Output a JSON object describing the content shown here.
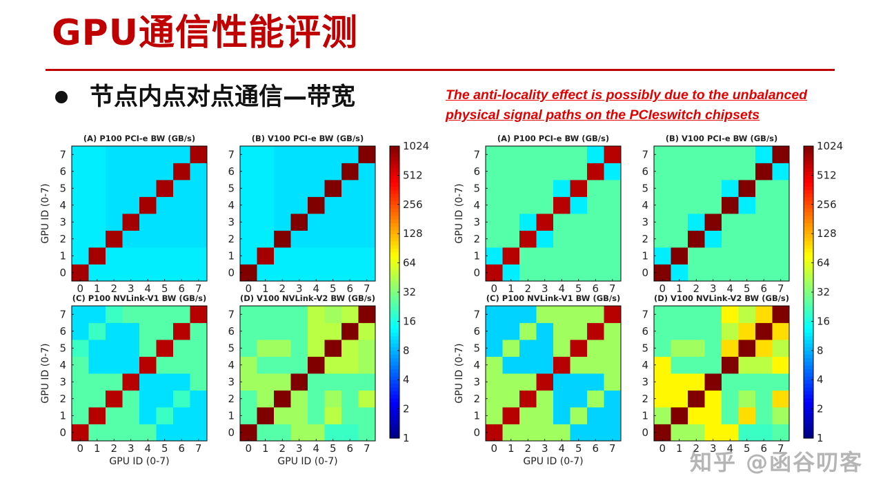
{
  "page": {
    "title": "GPU通信性能评测",
    "bullet": "节点内点对点通信—带宽",
    "note": "The anti-locality effect is possibly due to the unbalanced physical signal paths on the PCIeswitch chipsets",
    "watermark": "知乎 @函谷叨客"
  },
  "colors": {
    "title": "#c00000",
    "note": "#e00000"
  },
  "chart_data": [
    {
      "type": "heatmap",
      "figure": "left",
      "panels": [
        {
          "title": "(A) P100 PCI-e BW (GB/s)",
          "xlabel": "",
          "ylabel": "GPU ID (0-7)",
          "categories": [
            "0",
            "1",
            "2",
            "3",
            "4",
            "5",
            "6",
            "7"
          ],
          "values": [
            [
              800,
              12,
              12,
              12,
              12,
              12,
              12,
              12
            ],
            [
              12,
              800,
              12,
              12,
              12,
              12,
              12,
              12
            ],
            [
              12,
              12,
              800,
              11,
              11,
              11,
              11,
              11
            ],
            [
              12,
              12,
              11,
              800,
              11,
              11,
              11,
              11
            ],
            [
              12,
              12,
              11,
              11,
              800,
              11,
              11,
              11
            ],
            [
              12,
              12,
              11,
              11,
              11,
              800,
              11,
              11
            ],
            [
              12,
              12,
              11,
              11,
              11,
              11,
              800,
              11
            ],
            [
              12,
              12,
              11,
              11,
              11,
              11,
              11,
              800
            ]
          ]
        },
        {
          "title": "(B) V100 PCI-e BW (GB/s)",
          "xlabel": "",
          "ylabel": "",
          "categories": [
            "0",
            "1",
            "2",
            "3",
            "4",
            "5",
            "6",
            "7"
          ],
          "values": [
            [
              1024,
              12,
              12,
              12,
              12,
              12,
              12,
              12
            ],
            [
              12,
              800,
              12,
              12,
              12,
              12,
              12,
              12
            ],
            [
              12,
              12,
              1024,
              11,
              11,
              11,
              11,
              11
            ],
            [
              12,
              12,
              11,
              1024,
              11,
              11,
              11,
              11
            ],
            [
              12,
              12,
              11,
              11,
              1024,
              11,
              11,
              11
            ],
            [
              12,
              12,
              11,
              11,
              11,
              1024,
              11,
              11
            ],
            [
              12,
              12,
              11,
              11,
              11,
              11,
              1024,
              11
            ],
            [
              12,
              12,
              11,
              11,
              11,
              11,
              11,
              1024
            ]
          ]
        },
        {
          "title": "(C) P100 NVLink-V1 BW (GB/s)",
          "xlabel": "GPU ID (0-7)",
          "ylabel": "GPU ID (0-7)",
          "categories": [
            "0",
            "1",
            "2",
            "3",
            "4",
            "5",
            "6",
            "7"
          ],
          "values": [
            [
              700,
              24,
              24,
              24,
              24,
              11,
              11,
              11
            ],
            [
              24,
              700,
              24,
              24,
              11,
              20,
              11,
              11
            ],
            [
              24,
              24,
              700,
              24,
              11,
              11,
              20,
              11
            ],
            [
              24,
              24,
              24,
              700,
              11,
              11,
              11,
              24
            ],
            [
              24,
              11,
              11,
              11,
              700,
              24,
              24,
              24
            ],
            [
              20,
              11,
              11,
              11,
              24,
              700,
              24,
              24
            ],
            [
              11,
              20,
              11,
              11,
              24,
              24,
              700,
              24
            ],
            [
              11,
              11,
              20,
              24,
              24,
              24,
              24,
              700
            ]
          ]
        },
        {
          "title": "(D) V100 NVLink-V2 BW (GB/s)",
          "xlabel": "GPU ID (0-7)",
          "ylabel": "",
          "categories": [
            "0",
            "1",
            "2",
            "3",
            "4",
            "5",
            "6",
            "7"
          ],
          "values": [
            [
              1024,
              24,
              24,
              40,
              40,
              20,
              20,
              24
            ],
            [
              24,
              1024,
              40,
              40,
              24,
              48,
              24,
              24
            ],
            [
              24,
              40,
              1024,
              40,
              24,
              40,
              24,
              48
            ],
            [
              40,
              40,
              40,
              1024,
              24,
              24,
              24,
              24
            ],
            [
              40,
              24,
              24,
              24,
              1024,
              48,
              48,
              40
            ],
            [
              24,
              40,
              40,
              24,
              48,
              1024,
              48,
              40
            ],
            [
              24,
              24,
              24,
              24,
              48,
              48,
              1024,
              48
            ],
            [
              24,
              24,
              24,
              24,
              48,
              40,
              48,
              1024
            ]
          ]
        }
      ],
      "colorbar": {
        "label_ticks": [
          "1",
          "2",
          "4",
          "8",
          "16",
          "32",
          "64",
          "128",
          "256",
          "512",
          "1024"
        ],
        "scale": "log2",
        "range": [
          1,
          1024
        ]
      }
    },
    {
      "type": "heatmap",
      "figure": "right",
      "panels": [
        {
          "title": "(A) P100 PCI-e BW (GB/s)",
          "xlabel": "",
          "ylabel": "GPU ID (0-7)",
          "categories": [
            "0",
            "1",
            "2",
            "3",
            "4",
            "5",
            "6",
            "7"
          ],
          "values": [
            [
              700,
              12,
              24,
              24,
              24,
              24,
              24,
              24
            ],
            [
              12,
              700,
              24,
              24,
              24,
              24,
              24,
              24
            ],
            [
              24,
              24,
              700,
              12,
              24,
              24,
              24,
              24
            ],
            [
              24,
              24,
              12,
              700,
              24,
              24,
              24,
              24
            ],
            [
              24,
              24,
              24,
              24,
              700,
              12,
              24,
              24
            ],
            [
              24,
              24,
              24,
              24,
              12,
              700,
              24,
              24
            ],
            [
              24,
              24,
              24,
              24,
              24,
              24,
              700,
              12
            ],
            [
              24,
              24,
              24,
              24,
              24,
              24,
              12,
              700
            ]
          ]
        },
        {
          "title": "(B) V100 PCI-e BW (GB/s)",
          "xlabel": "",
          "ylabel": "",
          "categories": [
            "0",
            "1",
            "2",
            "3",
            "4",
            "5",
            "6",
            "7"
          ],
          "values": [
            [
              1024,
              12,
              24,
              24,
              24,
              24,
              24,
              24
            ],
            [
              12,
              1024,
              24,
              24,
              24,
              24,
              24,
              24
            ],
            [
              24,
              24,
              1024,
              12,
              24,
              24,
              24,
              24
            ],
            [
              24,
              24,
              12,
              1024,
              24,
              24,
              24,
              24
            ],
            [
              24,
              24,
              24,
              24,
              1024,
              12,
              24,
              24
            ],
            [
              24,
              24,
              24,
              24,
              12,
              1024,
              24,
              24
            ],
            [
              24,
              24,
              24,
              24,
              24,
              24,
              1024,
              12
            ],
            [
              24,
              24,
              24,
              24,
              24,
              24,
              12,
              1024
            ]
          ]
        },
        {
          "title": "(C) P100 NVLink-V1 BW (GB/s)",
          "xlabel": "GPU ID (0-7)",
          "ylabel": "GPU ID (0-7)",
          "categories": [
            "0",
            "1",
            "2",
            "3",
            "4",
            "5",
            "6",
            "7"
          ],
          "values": [
            [
              700,
              40,
              40,
              40,
              40,
              10,
              10,
              10
            ],
            [
              40,
              700,
              40,
              40,
              10,
              40,
              10,
              10
            ],
            [
              40,
              40,
              700,
              40,
              10,
              10,
              40,
              10
            ],
            [
              40,
              40,
              40,
              700,
              10,
              10,
              10,
              40
            ],
            [
              40,
              10,
              10,
              10,
              700,
              40,
              40,
              40
            ],
            [
              10,
              40,
              10,
              10,
              40,
              700,
              40,
              40
            ],
            [
              10,
              10,
              40,
              10,
              40,
              40,
              700,
              40
            ],
            [
              10,
              10,
              10,
              40,
              40,
              40,
              40,
              700
            ]
          ]
        },
        {
          "title": "(D) V100 NVLink-V2 BW (GB/s)",
          "xlabel": "",
          "ylabel": "",
          "categories": [
            "0",
            "1",
            "2",
            "3",
            "4",
            "5",
            "6",
            "7"
          ],
          "values": [
            [
              1024,
              40,
              40,
              80,
              80,
              20,
              20,
              24
            ],
            [
              40,
              1024,
              80,
              80,
              24,
              96,
              24,
              40
            ],
            [
              80,
              80,
              1024,
              80,
              24,
              40,
              24,
              96
            ],
            [
              80,
              80,
              80,
              1024,
              24,
              24,
              24,
              24
            ],
            [
              80,
              24,
              24,
              24,
              1024,
              48,
              48,
              80
            ],
            [
              24,
              40,
              40,
              24,
              96,
              1024,
              96,
              48
            ],
            [
              24,
              24,
              24,
              24,
              48,
              96,
              1024,
              96
            ],
            [
              24,
              24,
              24,
              24,
              80,
              48,
              96,
              1024
            ]
          ]
        }
      ],
      "colorbar": {
        "label_ticks": [
          "1",
          "2",
          "4",
          "8",
          "16",
          "32",
          "64",
          "128",
          "256",
          "512",
          "1024"
        ],
        "scale": "log2",
        "range": [
          1,
          1024
        ]
      }
    }
  ]
}
